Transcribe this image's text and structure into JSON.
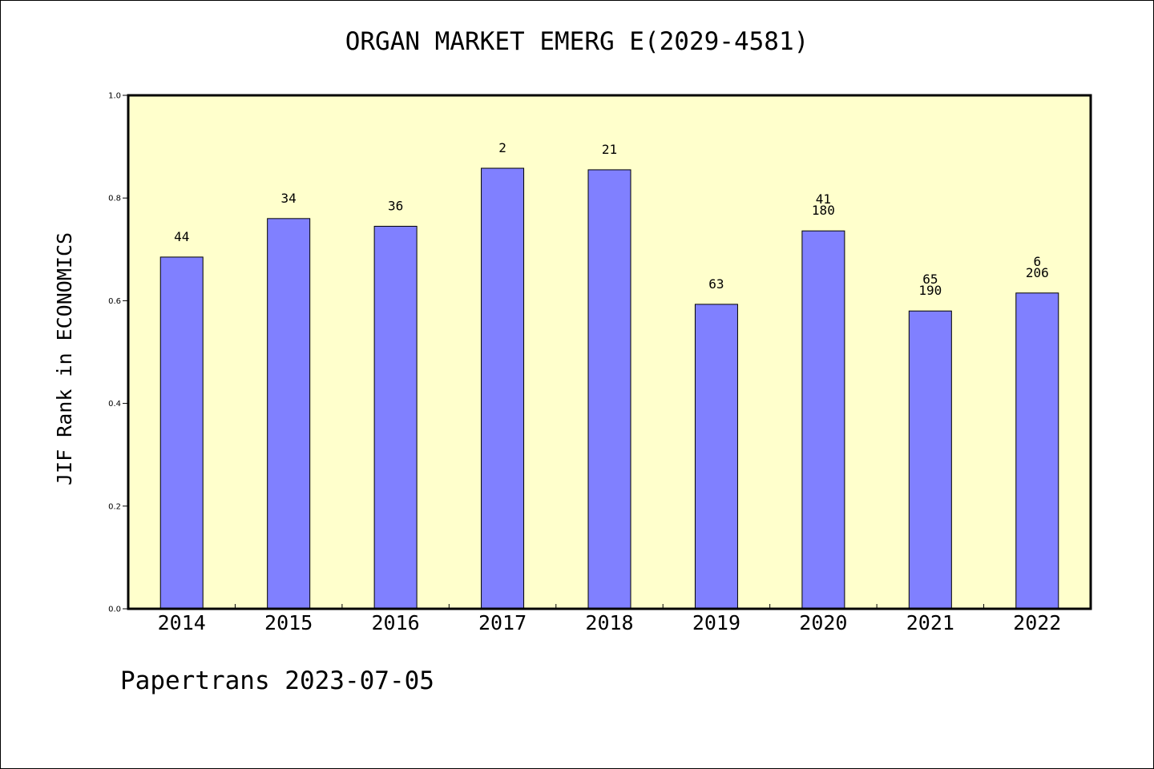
{
  "footer_text": "Papertrans 2023-07-05",
  "colors": {
    "plot_background": "#ffffcc",
    "bar_fill": "#8080ff",
    "bar_stroke": "#000000"
  },
  "chart_data": {
    "type": "bar",
    "title": "ORGAN MARKET EMERG E(2029-4581)",
    "xlabel": "",
    "ylabel": "JIF Rank in ECONOMICS",
    "ylim": [
      0,
      1.0
    ],
    "yticks": [
      "0.0",
      "0.2",
      "0.4",
      "0.6",
      "0.8",
      "1.0"
    ],
    "grid": false,
    "categories": [
      "2014",
      "2015",
      "2016",
      "2017",
      "2018",
      "2019",
      "2020",
      "2021",
      "2022"
    ],
    "values": [
      0.685,
      0.76,
      0.745,
      0.858,
      0.855,
      0.593,
      0.736,
      0.58,
      0.615
    ],
    "bar_labels": [
      [
        "44"
      ],
      [
        "34"
      ],
      [
        "36"
      ],
      [
        "2"
      ],
      [
        "21"
      ],
      [
        "63"
      ],
      [
        "41",
        "180"
      ],
      [
        "65",
        "190"
      ],
      [
        "6",
        "206"
      ]
    ]
  }
}
